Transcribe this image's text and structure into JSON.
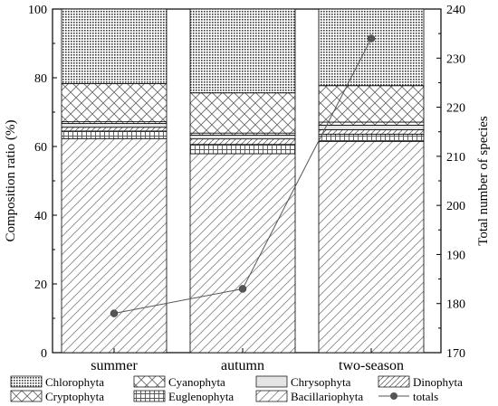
{
  "chart_data": {
    "type": "bar",
    "stacked": true,
    "categories": [
      "summer",
      "autumn",
      "two-season"
    ],
    "series": [
      {
        "name": "Bacillariophyta",
        "values": [
          62.3,
          57.9,
          61.5
        ]
      },
      {
        "name": "Euglenophyta",
        "values": [
          2.2,
          2.7,
          2.1
        ]
      },
      {
        "name": "Dinophyta",
        "values": [
          1.1,
          1.6,
          1.3
        ]
      },
      {
        "name": "Chrysophyta",
        "values": [
          1.1,
          1.1,
          1.3
        ]
      },
      {
        "name": "Cryptophyta",
        "values": [
          0.5,
          0.6,
          0.9
        ]
      },
      {
        "name": "Cyanophyta",
        "values": [
          11.1,
          11.7,
          10.6
        ]
      },
      {
        "name": "Chlorophyta",
        "values": [
          21.7,
          24.4,
          22.3
        ]
      }
    ],
    "line_series": {
      "name": "totals",
      "values": [
        178,
        183,
        234
      ]
    },
    "ylabel": "Composition ratio (%)",
    "y2label": "Total number of species",
    "ylim": [
      0,
      100
    ],
    "y2lim": [
      170,
      240
    ],
    "yticks": [
      0,
      20,
      40,
      60,
      80,
      100
    ],
    "y2ticks": [
      170,
      180,
      190,
      200,
      210,
      220,
      230,
      240
    ],
    "legend": {
      "placement": "bottom",
      "row1": [
        "Chlorophyta",
        "Cyanophyta",
        "Chrysophyta",
        "Dinophyta"
      ],
      "row2": [
        "Cryptophyta",
        "Euglenophyta",
        "Bacillariophyta",
        "totals"
      ]
    }
  }
}
